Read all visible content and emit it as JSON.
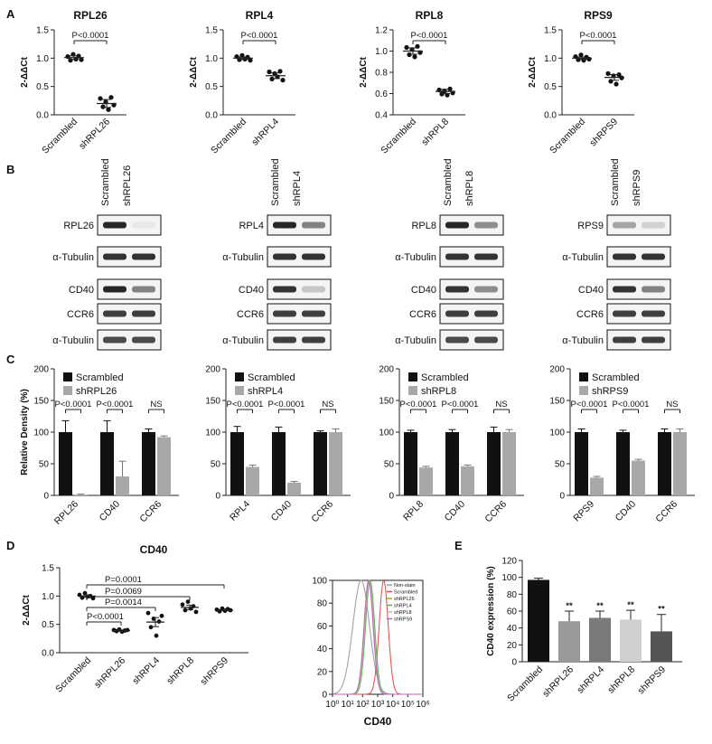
{
  "figure": {
    "panel_labels": [
      "A",
      "B",
      "C",
      "D",
      "E"
    ],
    "panelA": [
      {
        "title": "RPL26",
        "ylabel": "2-ΔΔCt",
        "ylim": [
          0,
          1.5
        ],
        "yticks": [
          "0.0",
          "0.5",
          "1.0",
          "1.5"
        ],
        "categories": [
          "Scrambled",
          "shRPL26"
        ],
        "pval": "P<0.0001",
        "points": [
          [
            1.02,
            0.97,
            1.06,
            0.99,
            1.03,
            0.98
          ],
          [
            0.28,
            0.15,
            0.22,
            0.1,
            0.3,
            0.18
          ]
        ],
        "means": [
          1.01,
          0.2
        ],
        "sem": [
          0.03,
          0.07
        ]
      },
      {
        "title": "RPL4",
        "ylabel": "2-ΔΔCt",
        "ylim": [
          0,
          1.5
        ],
        "yticks": [
          "0.0",
          "0.5",
          "1.0",
          "1.5"
        ],
        "categories": [
          "Scrambled",
          "shRPL4"
        ],
        "pval": "P<0.0001",
        "points": [
          [
            1.02,
            0.98,
            1.04,
            0.99,
            1.01,
            0.97
          ],
          [
            0.75,
            0.64,
            0.72,
            0.68,
            0.76,
            0.62
          ]
        ],
        "means": [
          1.0,
          0.69
        ],
        "sem": [
          0.02,
          0.05
        ]
      },
      {
        "title": "RPL8",
        "ylabel": "2-ΔΔCt",
        "ylim": [
          0.4,
          1.2
        ],
        "yticks": [
          "0.4",
          "0.6",
          "0.8",
          "1.0",
          "1.2"
        ],
        "categories": [
          "Scrambled",
          "shRPL8"
        ],
        "pval": "P<0.0001",
        "points": [
          [
            1.03,
            0.97,
            1.01,
            0.95,
            1.04,
            0.99
          ],
          [
            0.63,
            0.6,
            0.62,
            0.59,
            0.64,
            0.61
          ]
        ],
        "means": [
          1.0,
          0.62
        ],
        "sem": [
          0.03,
          0.02
        ]
      },
      {
        "title": "RPS9",
        "ylabel": "2-ΔΔCt",
        "ylim": [
          0,
          1.5
        ],
        "yticks": [
          "0.0",
          "0.5",
          "1.0",
          "1.5"
        ],
        "categories": [
          "Scrambled",
          "shRPS9"
        ],
        "pval": "P<0.0001",
        "points": [
          [
            1.02,
            0.98,
            1.05,
            0.97,
            1.01,
            0.99
          ],
          [
            0.72,
            0.6,
            0.68,
            0.55,
            0.7,
            0.66
          ]
        ],
        "means": [
          1.0,
          0.66
        ],
        "sem": [
          0.02,
          0.05
        ]
      }
    ],
    "panelB": [
      {
        "lanes": [
          "Scrambled",
          "shRPL26"
        ],
        "rows": [
          "RPL26",
          "α-Tubulin",
          "CD40",
          "CCR6",
          "α-Tubulin"
        ],
        "intensity": [
          [
            0.9,
            0.05
          ],
          [
            0.85,
            0.85
          ],
          [
            0.9,
            0.5
          ],
          [
            0.8,
            0.8
          ],
          [
            0.75,
            0.75
          ]
        ]
      },
      {
        "lanes": [
          "Scrambled",
          "shRPL4"
        ],
        "rows": [
          "RPL4",
          "α-Tubulin",
          "CD40",
          "CCR6",
          "α-Tubulin"
        ],
        "intensity": [
          [
            0.9,
            0.5
          ],
          [
            0.85,
            0.85
          ],
          [
            0.85,
            0.2
          ],
          [
            0.8,
            0.8
          ],
          [
            0.8,
            0.8
          ]
        ]
      },
      {
        "lanes": [
          "Scrambled",
          "shRPL8"
        ],
        "rows": [
          "RPL8",
          "α-Tubulin",
          "CD40",
          "CCR6",
          "α-Tubulin"
        ],
        "intensity": [
          [
            0.9,
            0.45
          ],
          [
            0.85,
            0.85
          ],
          [
            0.85,
            0.45
          ],
          [
            0.8,
            0.8
          ],
          [
            0.75,
            0.75
          ]
        ]
      },
      {
        "lanes": [
          "Scrambled",
          "shRPS9"
        ],
        "rows": [
          "RPS9",
          "α-Tubulin",
          "CD40",
          "CCR6",
          "α-Tubulin"
        ],
        "intensity": [
          [
            0.35,
            0.15
          ],
          [
            0.85,
            0.85
          ],
          [
            0.85,
            0.5
          ],
          [
            0.8,
            0.8
          ],
          [
            0.8,
            0.8
          ]
        ]
      }
    ],
    "panelC_ylabel": "Relative Density (%)",
    "panelC_yticks": [
      "0",
      "50",
      "100",
      "150",
      "200"
    ],
    "panelC": [
      {
        "legend": [
          "Scrambled",
          "shRPL26"
        ],
        "categories": [
          "RPL26",
          "CD40",
          "CCR6"
        ],
        "scrambled": [
          100,
          100,
          100
        ],
        "sh": [
          1,
          30,
          92
        ],
        "err_s": [
          18,
          18,
          5
        ],
        "err_sh": [
          1,
          24,
          2
        ],
        "pvals": [
          "P<0.0001",
          "P<0.0001",
          "NS"
        ]
      },
      {
        "legend": [
          "Scrambled",
          "shRPL4"
        ],
        "categories": [
          "RPL4",
          "CD40",
          "CCR6"
        ],
        "scrambled": [
          100,
          100,
          100
        ],
        "sh": [
          45,
          20,
          100
        ],
        "err_s": [
          9,
          8,
          2
        ],
        "err_sh": [
          3,
          2,
          5
        ],
        "pvals": [
          "P<0.0001",
          "P<0.0001",
          "NS"
        ]
      },
      {
        "legend": [
          "Scrambled",
          "shRPL8"
        ],
        "categories": [
          "RPL8",
          "CD40",
          "CCR6"
        ],
        "scrambled": [
          100,
          100,
          100
        ],
        "sh": [
          44,
          46,
          100
        ],
        "err_s": [
          3,
          4,
          8
        ],
        "err_sh": [
          2,
          2,
          4
        ],
        "pvals": [
          "P<0.0001",
          "P<0.0001",
          "NS"
        ]
      },
      {
        "legend": [
          "Scrambled",
          "shRPS9"
        ],
        "categories": [
          "RPS9",
          "CD40",
          "CCR6"
        ],
        "scrambled": [
          100,
          100,
          100
        ],
        "sh": [
          28,
          55,
          100
        ],
        "err_s": [
          5,
          3,
          5
        ],
        "err_sh": [
          2,
          2,
          5
        ],
        "pvals": [
          "P<0.0001",
          "P<0.0001",
          "NS"
        ]
      }
    ],
    "panelD": {
      "title": "CD40",
      "ylabel": "2-ΔΔCt",
      "ylim": [
        0,
        1.5
      ],
      "yticks": [
        "0.0",
        "0.5",
        "1.0",
        "1.5"
      ],
      "categories": [
        "Scrambled",
        "shRPL26",
        "shRPL4",
        "shRPL8",
        "shRPS9"
      ],
      "points": [
        [
          1.02,
          0.97,
          1.05,
          0.99,
          1.0,
          0.96
        ],
        [
          0.4,
          0.38,
          0.41,
          0.37,
          0.39,
          0.4
        ],
        [
          0.7,
          0.45,
          0.6,
          0.3,
          0.55,
          0.65
        ],
        [
          0.85,
          0.75,
          0.9,
          0.78,
          0.82,
          0.72
        ],
        [
          0.76,
          0.73,
          0.78,
          0.74,
          0.77,
          0.75
        ]
      ],
      "means": [
        1.0,
        0.39,
        0.54,
        0.8,
        0.75
      ],
      "sem": [
        0.02,
        0.01,
        0.08,
        0.04,
        0.01
      ],
      "pvals": [
        "P<0.0001",
        "P=0.0014",
        "P=0.0069",
        "P=0.0001"
      ]
    },
    "panelE_hist": {
      "xlabel": "CD40",
      "yticks": [
        "0",
        "20",
        "40",
        "60",
        "80",
        "100"
      ],
      "xticks": [
        "10⁰",
        "10¹",
        "10²",
        "10³",
        "10⁴",
        "10⁵",
        "10⁶"
      ],
      "legend": [
        "Non-stain",
        "Scrambled",
        "shRPL26",
        "shRPL4",
        "shRPL8",
        "shRPS9"
      ],
      "colors": [
        "#9a9a9a",
        "#e04848",
        "#c8a000",
        "#58b048",
        "#b8b8b8",
        "#c060c0"
      ],
      "peaks": [
        1.9,
        3.4,
        2.4,
        2.5,
        2.45,
        2.4
      ]
    },
    "panelE_bar": {
      "ylabel": "CD40 expression (%)",
      "ylim": [
        0,
        120
      ],
      "yticks": [
        "0",
        "20",
        "40",
        "60",
        "80",
        "100",
        "120"
      ],
      "categories": [
        "Scrambled",
        "shRPL26",
        "shRPL4",
        "shRPL8",
        "shRPS9"
      ],
      "values": [
        97,
        48,
        52,
        50,
        36
      ],
      "errors": [
        2,
        12,
        8,
        11,
        20
      ],
      "sig": "**",
      "colors": [
        "#111111",
        "#9a9a9a",
        "#7a7a7a",
        "#cfcfcf",
        "#555555"
      ]
    }
  },
  "chart_data": [
    {
      "type": "scatter",
      "title": "RPL26",
      "categories": [
        "Scrambled",
        "shRPL26"
      ],
      "ylabel": "2-ΔΔCt",
      "ylim": [
        0,
        1.5
      ],
      "values": [
        1.01,
        0.2
      ]
    },
    {
      "type": "scatter",
      "title": "RPL4",
      "categories": [
        "Scrambled",
        "shRPL4"
      ],
      "ylabel": "2-ΔΔCt",
      "ylim": [
        0,
        1.5
      ],
      "values": [
        1.0,
        0.69
      ]
    },
    {
      "type": "scatter",
      "title": "RPL8",
      "categories": [
        "Scrambled",
        "shRPL8"
      ],
      "ylabel": "2-ΔΔCt",
      "ylim": [
        0.4,
        1.2
      ],
      "values": [
        1.0,
        0.62
      ]
    },
    {
      "type": "scatter",
      "title": "RPS9",
      "categories": [
        "Scrambled",
        "shRPS9"
      ],
      "ylabel": "2-ΔΔCt",
      "ylim": [
        0,
        1.5
      ],
      "values": [
        1.0,
        0.66
      ]
    },
    {
      "type": "bar",
      "categories": [
        "RPL26",
        "CD40",
        "CCR6"
      ],
      "ylabel": "Relative Density (%)",
      "ylim": [
        0,
        200
      ],
      "series": [
        {
          "name": "Scrambled",
          "values": [
            100,
            100,
            100
          ]
        },
        {
          "name": "shRPL26",
          "values": [
            1,
            30,
            92
          ]
        }
      ]
    },
    {
      "type": "bar",
      "categories": [
        "RPL4",
        "CD40",
        "CCR6"
      ],
      "ylim": [
        0,
        200
      ],
      "series": [
        {
          "name": "Scrambled",
          "values": [
            100,
            100,
            100
          ]
        },
        {
          "name": "shRPL4",
          "values": [
            45,
            20,
            100
          ]
        }
      ]
    },
    {
      "type": "bar",
      "categories": [
        "RPL8",
        "CD40",
        "CCR6"
      ],
      "ylim": [
        0,
        200
      ],
      "series": [
        {
          "name": "Scrambled",
          "values": [
            100,
            100,
            100
          ]
        },
        {
          "name": "shRPL8",
          "values": [
            44,
            46,
            100
          ]
        }
      ]
    },
    {
      "type": "bar",
      "categories": [
        "RPS9",
        "CD40",
        "CCR6"
      ],
      "ylim": [
        0,
        200
      ],
      "series": [
        {
          "name": "Scrambled",
          "values": [
            100,
            100,
            100
          ]
        },
        {
          "name": "shRPS9",
          "values": [
            28,
            55,
            100
          ]
        }
      ]
    },
    {
      "type": "scatter",
      "title": "CD40",
      "categories": [
        "Scrambled",
        "shRPL26",
        "shRPL4",
        "shRPL8",
        "shRPS9"
      ],
      "ylabel": "2-ΔΔCt",
      "ylim": [
        0,
        1.5
      ],
      "values": [
        1.0,
        0.39,
        0.54,
        0.8,
        0.75
      ]
    },
    {
      "type": "line",
      "xlabel": "CD40",
      "legend": [
        "Non-stain",
        "Scrambled",
        "shRPL26",
        "shRPL4",
        "shRPL8",
        "shRPS9"
      ],
      "ylim": [
        0,
        100
      ]
    },
    {
      "type": "bar",
      "categories": [
        "Scrambled",
        "shRPL26",
        "shRPL4",
        "shRPL8",
        "shRPS9"
      ],
      "ylabel": "CD40 expression (%)",
      "ylim": [
        0,
        120
      ],
      "values": [
        97,
        48,
        52,
        50,
        36
      ]
    }
  ]
}
